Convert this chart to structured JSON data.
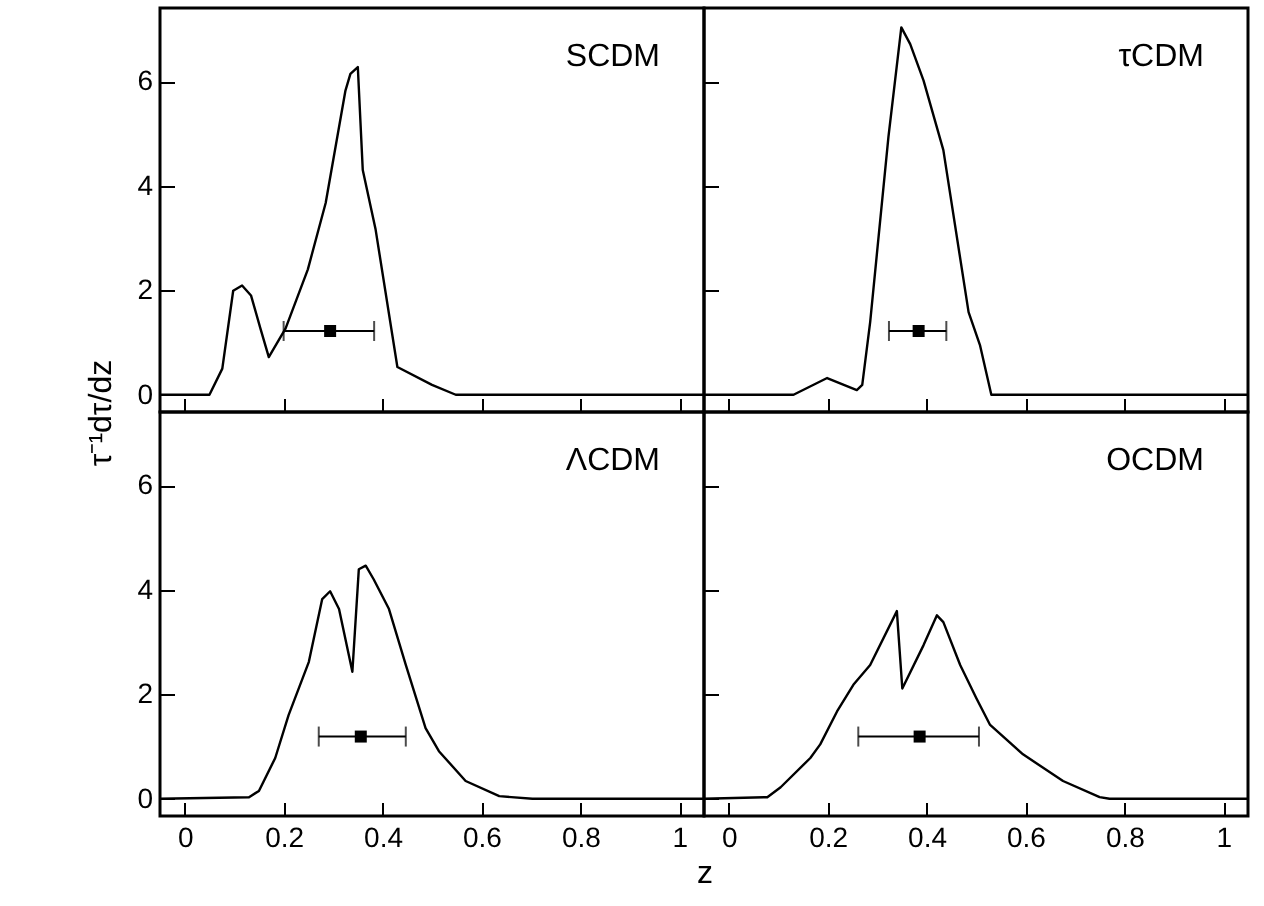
{
  "chart_data": [
    {
      "type": "line",
      "title": "SCDM",
      "ylabel": "τ⁻¹dτ/dz",
      "xlim": [
        -0.05,
        1.05
      ],
      "xticks": [
        0,
        0.2,
        0.4,
        0.6,
        0.8,
        1
      ],
      "ylim": [
        -0.33,
        7.4
      ],
      "yticks": [
        0,
        2,
        4,
        6
      ],
      "tick_labels": "y",
      "series": [
        {
          "color": "#000000",
          "x": [
            -0.05,
            0.05,
            0.076,
            0.098,
            0.116,
            0.134,
            0.153,
            0.17,
            0.204,
            0.249,
            0.285,
            0.325,
            0.335,
            0.35,
            0.36,
            0.386,
            0.43,
            0.5,
            0.548,
            1.05
          ],
          "values": [
            0,
            0,
            0.5,
            1.99,
            2.09,
            1.9,
            1.27,
            0.72,
            1.27,
            2.4,
            3.67,
            5.82,
            6.14,
            6.27,
            4.3,
            3.16,
            0.53,
            0.19,
            0,
            0
          ]
        },
        {
          "type": "scatter",
          "color": "#000000",
          "marker": "square",
          "x": [
            0.294
          ],
          "values": [
            1.22
          ],
          "xerrors": [
            [
              0.2,
              0.383
            ]
          ]
        }
      ]
    },
    {
      "type": "line",
      "title": "τCDM",
      "xlim": [
        -0.05,
        1.05
      ],
      "xticks": [
        0,
        0.2,
        0.4,
        0.6,
        0.8,
        1
      ],
      "ylim": [
        -0.33,
        7.4
      ],
      "yticks": [
        0,
        2,
        4,
        6
      ],
      "tick_labels": false,
      "series": [
        {
          "color": "#000000",
          "x": [
            -0.05,
            0.131,
            0.199,
            0.259,
            0.27,
            0.286,
            0.323,
            0.349,
            0.367,
            0.394,
            0.434,
            0.485,
            0.508,
            0.531,
            1.05
          ],
          "values": [
            0,
            0,
            0.32,
            0.09,
            0.19,
            1.39,
            4.94,
            7.03,
            6.71,
            6.01,
            4.68,
            1.58,
            0.95,
            0,
            0
          ]
        },
        {
          "type": "scatter",
          "color": "#000000",
          "marker": "square",
          "x": [
            0.384
          ],
          "values": [
            1.22
          ],
          "xerrors": [
            [
              0.324,
              0.44
            ]
          ]
        }
      ]
    },
    {
      "type": "line",
      "title": "ΛCDM",
      "xlabel": "z",
      "xlim": [
        -0.05,
        1.05
      ],
      "xticks": [
        0,
        0.2,
        0.4,
        0.6,
        0.8,
        1
      ],
      "ylim": [
        -0.33,
        7.4
      ],
      "yticks": [
        0,
        2,
        4,
        6
      ],
      "series": [
        {
          "color": "#000000",
          "x": [
            -0.05,
            0.13,
            0.15,
            0.183,
            0.21,
            0.251,
            0.278,
            0.294,
            0.312,
            0.339,
            0.352,
            0.366,
            0.382,
            0.413,
            0.447,
            0.487,
            0.514,
            0.568,
            0.636,
            0.703,
            1.05
          ],
          "values": [
            0,
            0.03,
            0.15,
            0.78,
            1.6,
            2.62,
            3.82,
            3.97,
            3.63,
            2.43,
            4.39,
            4.46,
            4.2,
            3.63,
            2.56,
            1.35,
            0.91,
            0.34,
            0.05,
            0,
            0
          ]
        },
        {
          "type": "scatter",
          "color": "#000000",
          "marker": "square",
          "x": [
            0.356
          ],
          "values": [
            1.19
          ],
          "xerrors": [
            [
              0.271,
              0.447
            ]
          ]
        }
      ]
    },
    {
      "type": "line",
      "title": "OCDM",
      "xlim": [
        -0.05,
        1.05
      ],
      "xticks": [
        0,
        0.2,
        0.4,
        0.6,
        0.8,
        1
      ],
      "ylim": [
        -0.33,
        7.4
      ],
      "yticks": [
        0,
        2,
        4,
        6
      ],
      "tick_labels": "x",
      "series": [
        {
          "color": "#000000",
          "x": [
            -0.05,
            0.078,
            0.105,
            0.165,
            0.185,
            0.219,
            0.252,
            0.286,
            0.34,
            0.351,
            0.394,
            0.421,
            0.434,
            0.468,
            0.501,
            0.528,
            0.595,
            0.676,
            0.75,
            0.77,
            1.05
          ],
          "values": [
            0,
            0.03,
            0.22,
            0.78,
            1.04,
            1.67,
            2.18,
            2.56,
            3.59,
            2.11,
            2.94,
            3.51,
            3.38,
            2.56,
            1.92,
            1.42,
            0.85,
            0.34,
            0.03,
            0,
            0
          ]
        },
        {
          "type": "scatter",
          "color": "#000000",
          "marker": "square",
          "x": [
            0.386
          ],
          "values": [
            1.19
          ],
          "xerrors": [
            [
              0.262,
              0.506
            ]
          ]
        }
      ]
    }
  ]
}
